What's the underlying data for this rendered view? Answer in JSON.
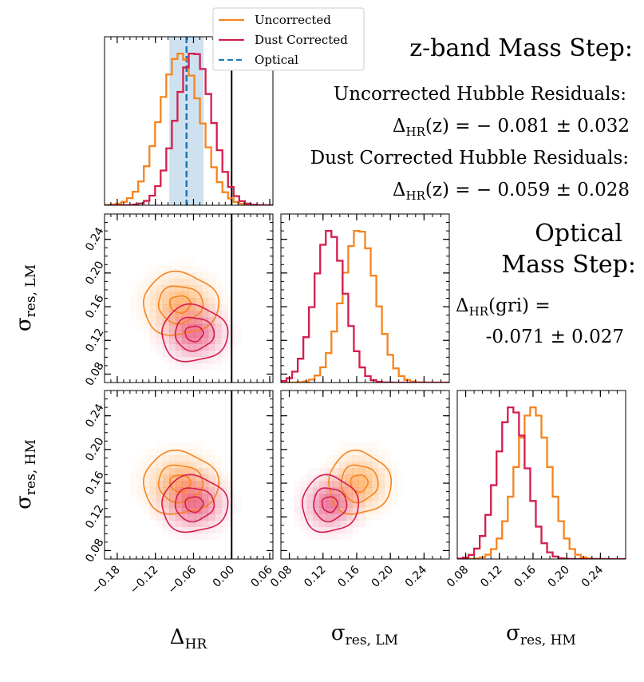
{
  "chart_data": {
    "type": "corner",
    "parameters": [
      "Δ_HR",
      "σ_res,LM",
      "σ_res,HM"
    ],
    "axis_labels": {
      "delta": {
        "main": "Δ",
        "sub": "HR"
      },
      "lm": {
        "main": "σ",
        "sub": "res, LM"
      },
      "hm": {
        "main": "σ",
        "sub": "res, HM"
      }
    },
    "ranges": {
      "delta": [
        -0.2,
        0.065
      ],
      "sigma": [
        0.07,
        0.27
      ]
    },
    "ticks": {
      "delta": [
        -0.18,
        -0.12,
        -0.06,
        0.0,
        0.06
      ],
      "delta_labels": [
        "−0.18",
        "−0.12",
        "−0.06",
        "0.00",
        "0.06"
      ],
      "sigma": [
        0.08,
        0.12,
        0.16,
        0.2,
        0.24
      ],
      "sigma_labels": [
        "0.08",
        "0.12",
        "0.16",
        "0.20",
        "0.24"
      ]
    },
    "reference_line_delta": 0.0,
    "optical_band": {
      "center": -0.071,
      "low": -0.098,
      "high": -0.044
    },
    "legend": {
      "position": "top-center",
      "entries": [
        {
          "label": "Uncorrected",
          "color": "#f5841f",
          "style": "solid"
        },
        {
          "label": "Dust Corrected",
          "color": "#d41d4c",
          "style": "solid"
        },
        {
          "label": "Optical",
          "color": "#1f77b4",
          "style": "dashed"
        }
      ]
    },
    "series": [
      {
        "key": "uncorrected",
        "color": "#f5841f",
        "fill": "#ff8c1a",
        "delta": {
          "mean": -0.081,
          "std": 0.032
        },
        "lm": {
          "mean": 0.163,
          "std": 0.02
        },
        "hm": {
          "mean": 0.16,
          "std": 0.02
        }
      },
      {
        "key": "dust_corrected",
        "color": "#d41d4c",
        "fill": "#e0195a",
        "delta": {
          "mean": -0.059,
          "std": 0.028
        },
        "lm": {
          "mean": 0.128,
          "std": 0.018
        },
        "hm": {
          "mean": 0.135,
          "std": 0.018
        }
      }
    ]
  },
  "text": {
    "title": "z-band Mass Step:",
    "uncorrected_heading": "Uncorrected Hubble Residuals:",
    "uncorrected_value": {
      "main": "Δ",
      "sub": "HR",
      "rest": "(z) = − 0.081 ± 0.032"
    },
    "dust_heading": "Dust Corrected Hubble Residuals:",
    "dust_value": {
      "main": "Δ",
      "sub": "HR",
      "rest": "(z) = − 0.059 ± 0.028"
    },
    "optical_line1": "Optical",
    "optical_line2": "Mass Step:",
    "optical_value": {
      "main": "Δ",
      "sub": "HR",
      "rest": "(gri) ="
    },
    "optical_result": "-0.071 ± 0.027"
  }
}
